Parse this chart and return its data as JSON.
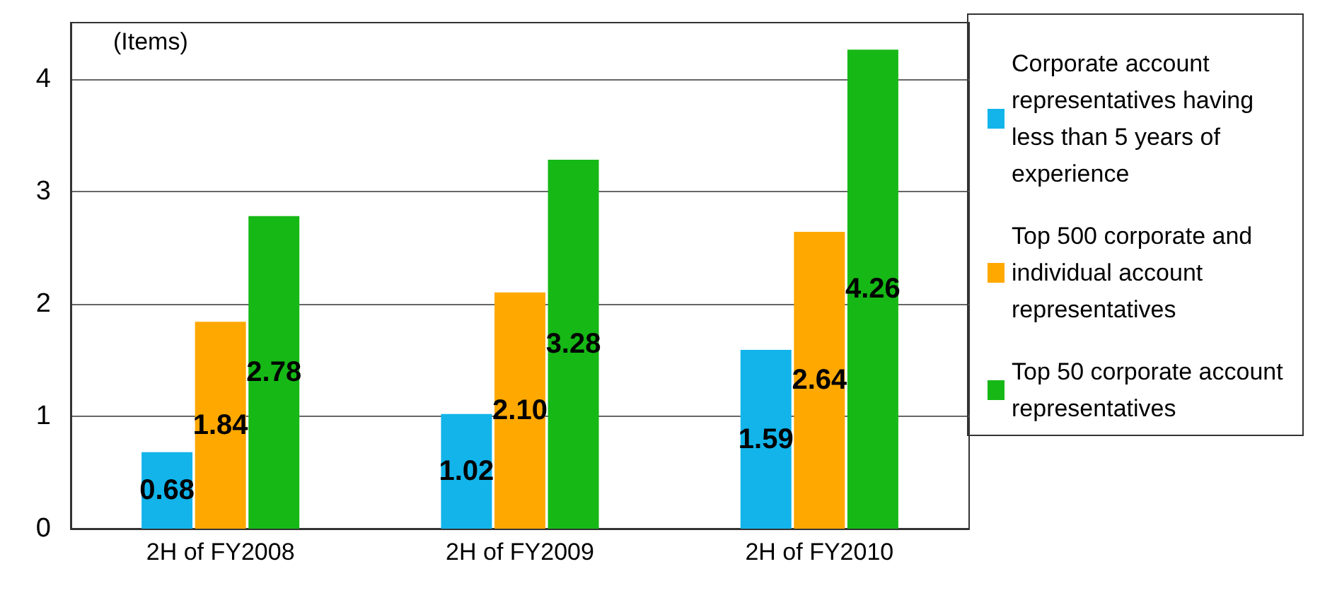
{
  "chart_data": {
    "type": "bar",
    "ylabel": "(Items)",
    "categories": [
      "2H of FY2008",
      "2H of FY2009",
      "2H of FY2010"
    ],
    "series": [
      {
        "name": "Corporate account representatives having less than 5 years of experience",
        "color": "#12b4ea",
        "values": [
          0.68,
          1.02,
          1.59
        ]
      },
      {
        "name": "Top 500 corporate and individual account representatives",
        "color": "#ffa800",
        "values": [
          1.84,
          2.1,
          2.64
        ]
      },
      {
        "name": "Top 50 corporate account representatives",
        "color": "#16b816",
        "values": [
          2.78,
          3.28,
          4.26
        ]
      }
    ],
    "value_labels": [
      [
        "0.68",
        "1.02",
        "1.59"
      ],
      [
        "1.84",
        "2.10",
        "2.64"
      ],
      [
        "2.78",
        "3.28",
        "4.26"
      ]
    ],
    "ylim": [
      0,
      4.5
    ],
    "yticks": [
      0,
      1,
      2,
      3,
      4
    ],
    "grid": "y",
    "legend": "right"
  }
}
